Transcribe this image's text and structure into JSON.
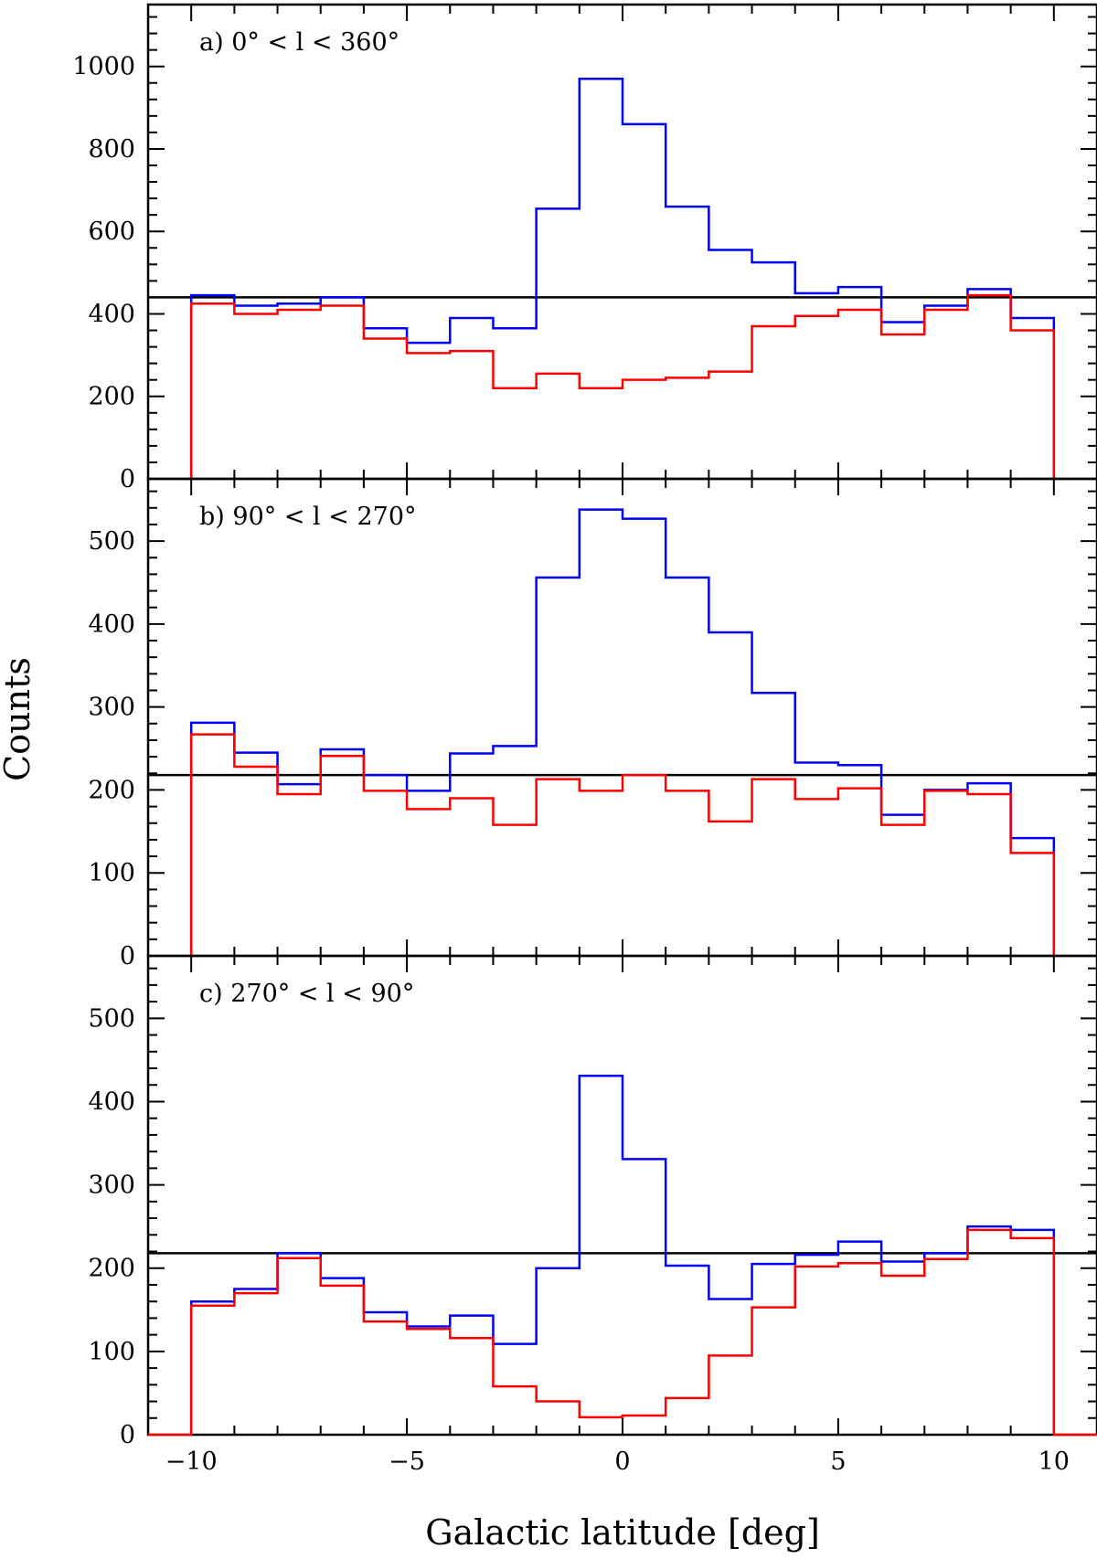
{
  "chart_data": {
    "type": "step-histogram",
    "xlabel": "Galactic latitude [deg]",
    "ylabel": "Counts",
    "xlim": [
      -11,
      11
    ],
    "xticks": [
      -10,
      -5,
      0,
      5,
      10
    ],
    "bin_edges": [
      -10,
      -9,
      -8,
      -7,
      -6,
      -5,
      -4,
      -3,
      -2,
      -1,
      0,
      1,
      2,
      3,
      4,
      5,
      6,
      7,
      8,
      9,
      10
    ],
    "panels": [
      {
        "label": "a) 0° < l < 360°",
        "ylim": [
          0,
          1150
        ],
        "yticks": [
          0,
          200,
          400,
          600,
          800,
          1000
        ],
        "hline": 440,
        "series": [
          {
            "color": "#0000ff",
            "values": [
              445,
              420,
              425,
              440,
              365,
              330,
              390,
              365,
              655,
              970,
              860,
              660,
              555,
              525,
              450,
              465,
              380,
              420,
              460,
              390
            ]
          },
          {
            "color": "#ff0000",
            "values": [
              425,
              400,
              410,
              420,
              340,
              305,
              310,
              220,
              255,
              220,
              240,
              245,
              260,
              370,
              395,
              410,
              350,
              410,
              445,
              360
            ]
          }
        ]
      },
      {
        "label": "b) 90° < l < 270°",
        "ylim": [
          0,
          575
        ],
        "yticks": [
          0,
          100,
          200,
          300,
          400,
          500
        ],
        "hline": 218,
        "series": [
          {
            "color": "#0000ff",
            "values": [
              281,
              245,
              207,
              249,
              218,
              199,
              244,
              253,
              456,
              538,
              527,
              456,
              390,
              317,
              233,
              230,
              170,
              200,
              208,
              142
            ]
          },
          {
            "color": "#ff0000",
            "values": [
              267,
              228,
              195,
              241,
              199,
              177,
              190,
              158,
              213,
              199,
              218,
              199,
              162,
              213,
              189,
              202,
              158,
              199,
              195,
              124
            ]
          }
        ]
      },
      {
        "label": "c) 270° < l < 90°",
        "ylim": [
          0,
          575
        ],
        "yticks": [
          0,
          100,
          200,
          300,
          400,
          500
        ],
        "hline": 218,
        "series": [
          {
            "color": "#0000ff",
            "values": [
              160,
              175,
              218,
              188,
              147,
              130,
              143,
              109,
              200,
              431,
              331,
              203,
              163,
              205,
              216,
              232,
              208,
              218,
              250,
              246
            ]
          },
          {
            "color": "#ff0000",
            "values": [
              155,
              170,
              212,
              179,
              136,
              127,
              116,
              58,
              40,
              21,
              23,
              44,
              95,
              153,
              202,
              206,
              191,
              211,
              246,
              236
            ]
          }
        ]
      }
    ]
  }
}
